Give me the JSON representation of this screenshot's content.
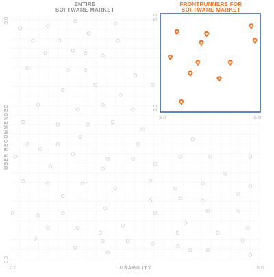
{
  "headers": {
    "entire": [
      "ENTIRE",
      "SOFTWARE MARKET"
    ],
    "frontrunners": [
      "FRONTRUNNERS FOR",
      "SOFTWARE MARKET"
    ]
  },
  "colors": {
    "entire_header": "#8c8c8c",
    "frontrunners_accent": "#f26f21",
    "frontrunners_box": "#3a6aa6",
    "market_points": "#d6d6d6",
    "grid": "#eeeeee"
  },
  "chart_data": [
    {
      "type": "scatter",
      "name": "entire-market",
      "xlabel": "USABILITY",
      "ylabel": "USER RECOMMENDED",
      "x_ticks": [
        "0.0",
        "5.0"
      ],
      "y_ticks": [
        "0.0",
        "5.0"
      ],
      "xlim": [
        0,
        5
      ],
      "ylim": [
        0,
        5
      ],
      "grid": true,
      "points": [
        [
          0.2,
          4.7
        ],
        [
          0.75,
          4.75
        ],
        [
          1.3,
          4.85
        ],
        [
          2.1,
          4.8
        ],
        [
          0.45,
          4.45
        ],
        [
          0.98,
          4.45
        ],
        [
          1.57,
          4.6
        ],
        [
          2.15,
          4.45
        ],
        [
          0.7,
          4.2
        ],
        [
          1.25,
          4.25
        ],
        [
          1.5,
          4.2
        ],
        [
          1.85,
          4.15
        ],
        [
          0.35,
          3.9
        ],
        [
          1.15,
          3.85
        ],
        [
          1.5,
          3.85
        ],
        [
          2.5,
          3.75
        ],
        [
          1.05,
          3.45
        ],
        [
          1.7,
          3.55
        ],
        [
          2.2,
          3.35
        ],
        [
          2.85,
          3.55
        ],
        [
          0.55,
          3.15
        ],
        [
          1.35,
          3.05
        ],
        [
          1.85,
          3.15
        ],
        [
          2.45,
          3.05
        ],
        [
          0.25,
          2.8
        ],
        [
          0.95,
          2.75
        ],
        [
          1.55,
          2.75
        ],
        [
          2.05,
          2.8
        ],
        [
          2.65,
          2.65
        ],
        [
          0.35,
          2.35
        ],
        [
          0.95,
          2.35
        ],
        [
          1.4,
          2.5
        ],
        [
          2.55,
          2.35
        ],
        [
          3.65,
          2.45
        ],
        [
          0.1,
          2.1
        ],
        [
          0.6,
          2.25
        ],
        [
          1.25,
          2.15
        ],
        [
          1.95,
          2.05
        ],
        [
          2.45,
          2.05
        ],
        [
          3.4,
          2.1
        ],
        [
          0.8,
          1.9
        ],
        [
          1.85,
          1.85
        ],
        [
          2.9,
          1.95
        ],
        [
          4.0,
          2.1
        ],
        [
          4.8,
          2.1
        ],
        [
          0.25,
          1.6
        ],
        [
          0.75,
          1.55
        ],
        [
          1.45,
          1.55
        ],
        [
          2.1,
          1.45
        ],
        [
          2.8,
          1.6
        ],
        [
          3.3,
          1.45
        ],
        [
          3.85,
          1.55
        ],
        [
          4.3,
          1.75
        ],
        [
          1.05,
          1.3
        ],
        [
          3.4,
          1.25
        ],
        [
          4.8,
          1.5
        ],
        [
          1.9,
          1.05
        ],
        [
          2.8,
          1.2
        ],
        [
          3.85,
          1.2
        ],
        [
          4.55,
          1.35
        ],
        [
          0.05,
          0.95
        ],
        [
          0.55,
          0.9
        ],
        [
          1.05,
          0.95
        ],
        [
          2.9,
          0.95
        ],
        [
          3.5,
          0.75
        ],
        [
          3.95,
          1.0
        ],
        [
          4.55,
          0.98
        ],
        [
          0.75,
          0.65
        ],
        [
          1.35,
          0.65
        ],
        [
          1.8,
          0.55
        ],
        [
          2.25,
          0.7
        ],
        [
          3.35,
          0.55
        ],
        [
          4.15,
          0.55
        ],
        [
          4.75,
          0.65
        ],
        [
          0.5,
          0.43
        ],
        [
          1.85,
          0.38
        ],
        [
          2.35,
          0.38
        ],
        [
          2.85,
          0.33
        ],
        [
          3.35,
          0.28
        ],
        [
          3.6,
          0.2
        ],
        [
          4.65,
          0.4
        ],
        [
          1.3,
          0.25
        ],
        [
          1.95,
          0.15
        ],
        [
          3.95,
          0.2
        ],
        [
          4.8,
          0.1
        ]
      ]
    },
    {
      "type": "scatter",
      "name": "frontrunners",
      "x_ticks": [
        "3.0",
        "5.0"
      ],
      "y_ticks": [
        "3.0",
        "5.0"
      ],
      "xlim": [
        3,
        5
      ],
      "ylim": [
        3,
        5
      ],
      "points": [
        [
          3.25,
          4.7
        ],
        [
          3.92,
          4.65
        ],
        [
          4.92,
          4.83
        ],
        [
          3.8,
          4.45
        ],
        [
          5.0,
          4.5
        ],
        [
          3.1,
          4.12
        ],
        [
          3.72,
          4.0
        ],
        [
          4.45,
          4.0
        ],
        [
          3.55,
          3.75
        ],
        [
          4.2,
          3.63
        ],
        [
          3.35,
          3.1
        ]
      ]
    }
  ]
}
